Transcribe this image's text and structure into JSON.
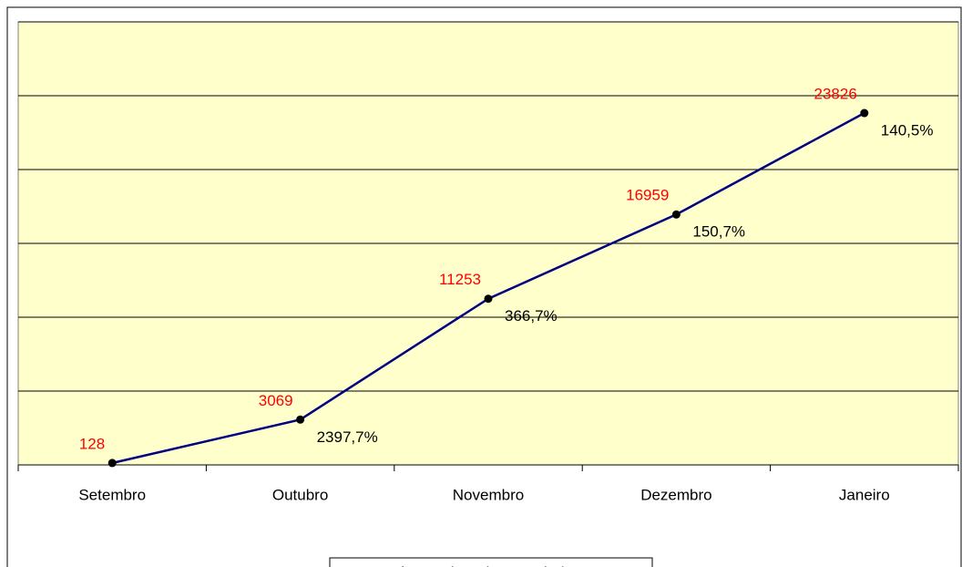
{
  "chart_data": {
    "type": "line",
    "categories": [
      "Setembro",
      "Outubro",
      "Novembro",
      "Dezembro",
      "Janeiro"
    ],
    "series": [
      {
        "name": "Número de ordens enviadas",
        "color": "#000080",
        "values": [
          128,
          3069,
          11253,
          16959,
          23826
        ]
      }
    ],
    "growth_labels": [
      null,
      "2397,7%",
      "366,7%",
      "150,7%",
      "140,5%"
    ],
    "value_label_color": "#ff0000",
    "ylim": [
      0,
      30000
    ],
    "yticks": [
      0,
      5000,
      10000,
      15000,
      20000,
      25000,
      30000
    ],
    "grid": true,
    "plot_background": "#ffffcc",
    "legend": "bottom"
  }
}
